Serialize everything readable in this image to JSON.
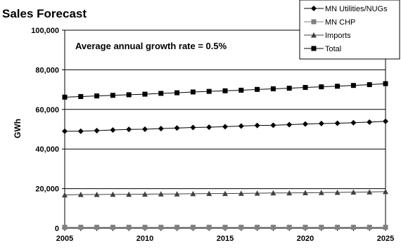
{
  "chart_data": {
    "type": "line",
    "title": "Sales Forecast",
    "xlabel": "",
    "ylabel": "GWh",
    "annotation": "Average annual growth rate = 0.5%",
    "xlim": [
      2005,
      2025
    ],
    "ylim": [
      0,
      100000
    ],
    "x_ticks": [
      2005,
      2010,
      2015,
      2020,
      2025
    ],
    "y_ticks": [
      0,
      20000,
      40000,
      60000,
      80000,
      100000
    ],
    "y_tick_labels": [
      "0",
      "20,000",
      "40,000",
      "60,000",
      "80,000",
      "100,000"
    ],
    "grid": "horizontal",
    "legend_position": "top-right",
    "x": [
      2005,
      2006,
      2007,
      2008,
      2009,
      2010,
      2011,
      2012,
      2013,
      2014,
      2015,
      2016,
      2017,
      2018,
      2019,
      2020,
      2021,
      2022,
      2023,
      2024,
      2025
    ],
    "series": [
      {
        "name": "MN Utilities/NUGs",
        "marker": "diamond",
        "color": "#000000",
        "values": [
          49000,
          49000,
          49300,
          49600,
          49900,
          50000,
          50300,
          50600,
          50900,
          51000,
          51300,
          51600,
          51900,
          52000,
          52300,
          52600,
          52900,
          53000,
          53300,
          53600,
          54000
        ]
      },
      {
        "name": "MN CHP",
        "marker": "square",
        "color": "#808080",
        "values": [
          500,
          500,
          500,
          500,
          500,
          500,
          500,
          500,
          500,
          500,
          500,
          500,
          500,
          500,
          500,
          500,
          500,
          500,
          500,
          500,
          500
        ]
      },
      {
        "name": "Imports",
        "marker": "triangle",
        "color": "#404040",
        "values": [
          16800,
          17000,
          17000,
          17100,
          17100,
          17200,
          17300,
          17300,
          17400,
          17500,
          17500,
          17600,
          17700,
          17800,
          17800,
          17900,
          18000,
          18100,
          18200,
          18300,
          18500
        ]
      },
      {
        "name": "Total",
        "marker": "square",
        "color": "#000000",
        "values": [
          66200,
          66500,
          66800,
          67100,
          67400,
          67700,
          68100,
          68400,
          68800,
          69100,
          69400,
          69700,
          70100,
          70400,
          70700,
          71100,
          71400,
          71700,
          72100,
          72500,
          73000
        ]
      }
    ]
  }
}
